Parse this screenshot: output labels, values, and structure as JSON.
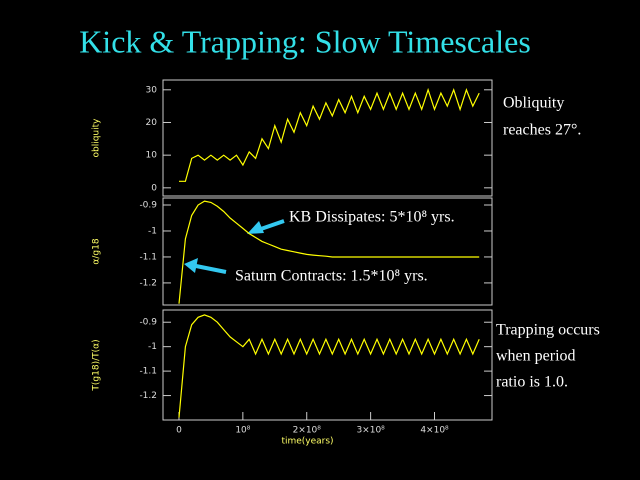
{
  "title": "Kick & Trapping: Slow Timescales",
  "notes": {
    "obliquity": [
      "Obliquity",
      "reaches 27°."
    ],
    "kb": "KB Dissipates: 5*10⁸ yrs.",
    "saturn": "Saturn Contracts: 1.5*10⁸ yrs.",
    "trapping": [
      "Trapping occurs",
      "when period",
      "ratio is 1.0."
    ]
  },
  "chart_data": [
    {
      "type": "line",
      "y_label": "obliquity",
      "x": [
        0,
        10000000,
        20000000,
        30000000,
        40000000,
        50000000,
        60000000,
        70000000,
        80000000,
        90000000,
        100000000,
        110000000,
        120000000,
        130000000,
        140000000,
        150000000,
        160000000,
        170000000,
        180000000,
        190000000,
        200000000,
        210000000,
        220000000,
        230000000,
        240000000,
        250000000,
        260000000,
        270000000,
        280000000,
        290000000,
        300000000,
        310000000,
        320000000,
        330000000,
        340000000,
        350000000,
        360000000,
        370000000,
        380000000,
        390000000,
        400000000,
        410000000,
        420000000,
        430000000,
        440000000,
        450000000,
        460000000,
        470000000
      ],
      "series": [
        {
          "color": "#ffff00",
          "values": [
            2,
            2,
            9,
            10,
            8.5,
            10,
            8.5,
            10,
            8.5,
            10,
            7,
            11,
            9,
            15,
            12,
            19,
            14,
            21,
            17,
            23,
            19,
            25,
            21,
            26,
            22,
            27,
            23,
            28,
            23,
            28,
            24,
            29,
            24,
            29,
            24,
            29,
            24,
            29,
            24,
            30,
            24,
            29,
            25,
            30,
            24,
            30,
            25,
            29
          ]
        }
      ],
      "xlim": [
        -25000000,
        490000000
      ],
      "ylim": [
        -2.5,
        33
      ],
      "yticks": [
        0,
        10,
        20,
        30
      ]
    },
    {
      "type": "line",
      "y_label": "α/g18",
      "x": [
        0,
        10000000,
        20000000,
        30000000,
        40000000,
        50000000,
        60000000,
        70000000,
        80000000,
        90000000,
        100000000,
        110000000,
        120000000,
        130000000,
        140000000,
        150000000,
        160000000,
        170000000,
        180000000,
        190000000,
        200000000,
        210000000,
        220000000,
        230000000,
        240000000,
        250000000,
        260000000,
        270000000,
        280000000,
        290000000,
        300000000,
        310000000,
        320000000,
        330000000,
        340000000,
        350000000,
        360000000,
        370000000,
        380000000,
        390000000,
        400000000,
        410000000,
        420000000,
        430000000,
        440000000,
        450000000,
        460000000,
        470000000
      ],
      "series": [
        {
          "color": "#ffff00",
          "values": [
            -1.28,
            -1.03,
            -0.94,
            -0.9,
            -0.885,
            -0.89,
            -0.905,
            -0.925,
            -0.95,
            -0.97,
            -0.99,
            -1.01,
            -1.025,
            -1.04,
            -1.05,
            -1.06,
            -1.07,
            -1.075,
            -1.08,
            -1.085,
            -1.09,
            -1.093,
            -1.095,
            -1.097,
            -1.1,
            -1.1,
            -1.1,
            -1.1,
            -1.1,
            -1.1,
            -1.1,
            -1.1,
            -1.1,
            -1.1,
            -1.1,
            -1.1,
            -1.1,
            -1.1,
            -1.1,
            -1.1,
            -1.1,
            -1.1,
            -1.1,
            -1.1,
            -1.1,
            -1.1,
            -1.1,
            -1.1
          ]
        }
      ],
      "xlim": [
        -25000000,
        490000000
      ],
      "ylim": [
        -1.285,
        -0.873
      ],
      "yticks": [
        -1.2,
        -1.1,
        -1,
        -0.9
      ]
    },
    {
      "type": "line",
      "y_label": "T(g18)/T(α)",
      "x_label": "time(years)",
      "x": [
        0,
        10000000,
        20000000,
        30000000,
        40000000,
        50000000,
        60000000,
        70000000,
        80000000,
        90000000,
        100000000,
        110000000,
        120000000,
        130000000,
        140000000,
        150000000,
        160000000,
        170000000,
        180000000,
        190000000,
        200000000,
        210000000,
        220000000,
        230000000,
        240000000,
        250000000,
        260000000,
        270000000,
        280000000,
        290000000,
        300000000,
        310000000,
        320000000,
        330000000,
        340000000,
        350000000,
        360000000,
        370000000,
        380000000,
        390000000,
        400000000,
        410000000,
        420000000,
        430000000,
        440000000,
        450000000,
        460000000,
        470000000
      ],
      "series": [
        {
          "color": "#ffff00",
          "values": [
            -1.29,
            -1.0,
            -0.91,
            -0.88,
            -0.87,
            -0.88,
            -0.9,
            -0.93,
            -0.96,
            -0.98,
            -1.0,
            -0.97,
            -1.03,
            -0.97,
            -1.03,
            -0.97,
            -1.03,
            -0.97,
            -1.03,
            -0.97,
            -1.03,
            -0.97,
            -1.03,
            -0.97,
            -1.03,
            -0.97,
            -1.03,
            -0.97,
            -1.03,
            -0.97,
            -1.03,
            -0.97,
            -1.03,
            -0.97,
            -1.03,
            -0.97,
            -1.03,
            -0.97,
            -1.03,
            -0.97,
            -1.03,
            -0.97,
            -1.03,
            -0.97,
            -1.03,
            -0.97,
            -1.03,
            -0.97
          ]
        }
      ],
      "xlim": [
        -25000000,
        490000000
      ],
      "ylim": [
        -1.3,
        -0.85
      ],
      "yticks": [
        -1.2,
        -1.1,
        -1,
        -0.9
      ],
      "xticks": [
        0,
        {
          "value": 100000000,
          "label": "10⁸"
        },
        {
          "value": 200000000,
          "label": "2×10⁸"
        },
        {
          "value": 300000000,
          "label": "3×10⁸"
        },
        {
          "value": 400000000,
          "label": "4×10⁸"
        }
      ]
    }
  ]
}
